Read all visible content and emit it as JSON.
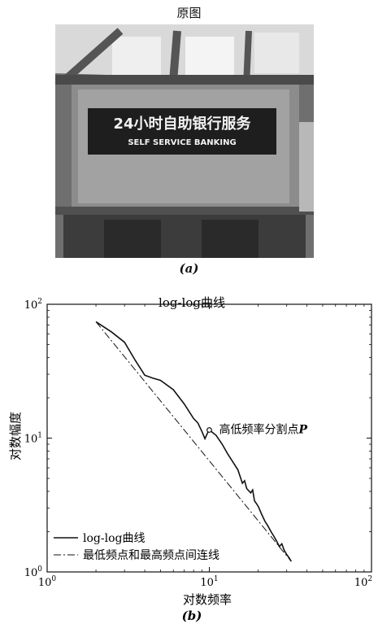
{
  "figure_a": {
    "title": "原图",
    "caption": "(a)",
    "photo": {
      "sign_main": "24小时自助银行服务",
      "sign_sub": "SELF SERVICE BANKING"
    }
  },
  "figure_b": {
    "caption": "(b)"
  },
  "chart_data": {
    "type": "line",
    "title": "log-log曲线",
    "xlabel": "对数频率",
    "ylabel": "对数幅度",
    "x_scale": "log",
    "y_scale": "log",
    "xlim": [
      1,
      100
    ],
    "ylim": [
      1,
      100
    ],
    "x_ticks": [
      {
        "value": 1,
        "label": "10",
        "exp": "0"
      },
      {
        "value": 10,
        "label": "10",
        "exp": "1"
      },
      {
        "value": 100,
        "label": "10",
        "exp": "2"
      }
    ],
    "y_ticks": [
      {
        "value": 1,
        "label": "10",
        "exp": "0"
      },
      {
        "value": 10,
        "label": "10",
        "exp": "1"
      },
      {
        "value": 100,
        "label": "10",
        "exp": "2"
      }
    ],
    "grid": false,
    "legend_position": "bottom-left",
    "series": [
      {
        "name": "log-log曲线",
        "style": "solid",
        "points": [
          [
            2.0,
            74
          ],
          [
            2.5,
            62
          ],
          [
            3.0,
            52
          ],
          [
            3.5,
            38
          ],
          [
            4.0,
            29.5
          ],
          [
            4.5,
            28
          ],
          [
            5.0,
            27
          ],
          [
            6.0,
            23
          ],
          [
            7.0,
            18
          ],
          [
            8.0,
            14
          ],
          [
            8.5,
            13
          ],
          [
            9.0,
            11.2
          ],
          [
            9.4,
            9.9
          ],
          [
            9.7,
            10.8
          ],
          [
            10.0,
            11.5
          ],
          [
            11.0,
            10.5
          ],
          [
            12.0,
            9.0
          ],
          [
            13.0,
            7.6
          ],
          [
            14.0,
            6.6
          ],
          [
            15.0,
            5.8
          ],
          [
            16.0,
            4.6
          ],
          [
            16.5,
            4.8
          ],
          [
            17.0,
            4.2
          ],
          [
            18.0,
            3.9
          ],
          [
            18.5,
            4.1
          ],
          [
            19.0,
            3.4
          ],
          [
            20.0,
            3.1
          ],
          [
            21.0,
            2.7
          ],
          [
            22.0,
            2.4
          ],
          [
            23.0,
            2.2
          ],
          [
            24.0,
            2.0
          ],
          [
            25.0,
            1.85
          ],
          [
            26.0,
            1.7
          ],
          [
            27.0,
            1.55
          ],
          [
            28.0,
            1.62
          ],
          [
            29.0,
            1.45
          ],
          [
            30.0,
            1.35
          ],
          [
            31.0,
            1.28
          ],
          [
            32.0,
            1.2
          ]
        ]
      },
      {
        "name": "最低频点和最高频点间连线",
        "style": "dashdot",
        "points": [
          [
            2.0,
            74
          ],
          [
            32.0,
            1.2
          ]
        ]
      }
    ],
    "annotations": [
      {
        "text": "高低频率分割点",
        "italic_suffix": "P",
        "x": 10.0,
        "y": 11.5
      }
    ]
  }
}
